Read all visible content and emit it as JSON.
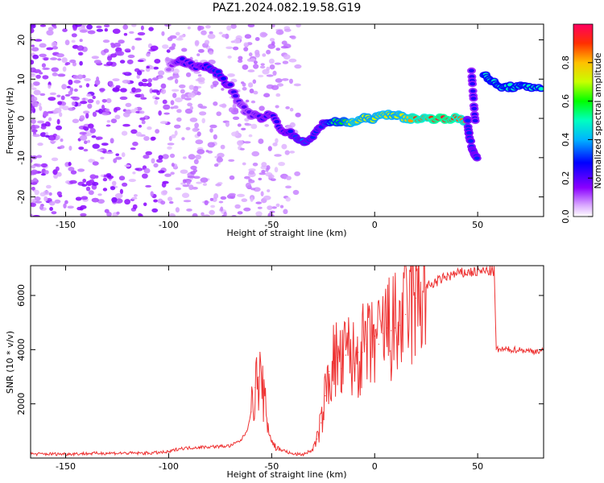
{
  "title": "PAZ1.2024.082.19.58.G19",
  "chart_data": [
    {
      "type": "heatmap",
      "xlabel": "Height of straight line (km)",
      "ylabel": "Frequency (Hz)",
      "xlim": [
        -167,
        82
      ],
      "ylim": [
        -25,
        24
      ],
      "xticks": [
        -150,
        -100,
        -50,
        0,
        50
      ],
      "yticks": [
        -20,
        -10,
        0,
        10,
        20
      ],
      "colorbar": {
        "label": "Normalized spectral amplitude",
        "range": [
          0,
          1
        ],
        "ticks": [
          0.0,
          0.2,
          0.4,
          0.6,
          0.8
        ],
        "colormap": "gist_rainbow_r"
      },
      "ridge": {
        "x": [
          -100,
          -95,
          -90,
          -85,
          -80,
          -75,
          -70,
          -65,
          -60,
          -55,
          -50,
          -45,
          -40,
          -35,
          -30,
          -25,
          -20,
          -15,
          -10,
          -5,
          0,
          5,
          10,
          15,
          20,
          25,
          30,
          35,
          40,
          45
        ],
        "y": [
          13,
          15,
          14,
          13,
          13,
          11,
          8,
          3,
          1,
          0,
          1,
          -3,
          -4,
          -6,
          -5,
          -1,
          -1,
          -1,
          -1,
          0,
          0,
          1,
          1,
          0,
          0,
          0,
          0,
          0,
          0,
          -1
        ]
      },
      "ridge_amplitude": [
        0.1,
        0.25,
        0.25,
        0.25,
        0.3,
        0.3,
        0.25,
        0.2,
        0.2,
        0.25,
        0.25,
        0.25,
        0.3,
        0.35,
        0.3,
        0.3,
        0.55,
        0.6,
        0.75,
        0.7,
        0.7,
        0.75,
        0.7,
        0.75,
        0.9,
        0.85,
        0.95,
        0.95,
        0.9,
        0.8
      ],
      "segments": [
        {
          "x": [
            45,
            46,
            48,
            50
          ],
          "y": [
            0,
            -5,
            -9,
            -10
          ]
        },
        {
          "x": [
            47,
            48,
            49
          ],
          "y": [
            12,
            5,
            -2
          ]
        },
        {
          "x": [
            53,
            56,
            60,
            65,
            70,
            75,
            82
          ],
          "y": [
            11,
            10,
            8,
            8,
            8,
            8,
            8
          ]
        }
      ],
      "segments_amplitude": [
        0.3,
        0.25,
        0.5
      ]
    },
    {
      "type": "line",
      "xlabel": "Height of straight line (km)",
      "ylabel": "SNR (10 * v/v)",
      "xlim": [
        -167,
        82
      ],
      "ylim": [
        0,
        7100
      ],
      "xticks": [
        -150,
        -100,
        -50,
        0,
        50
      ],
      "yticks": [
        2000,
        4000,
        6000
      ],
      "color": "#ee3333",
      "series": [
        {
          "x": [
            -167,
            -150,
            -130,
            -110,
            -100,
            -95,
            -85,
            -75,
            -70,
            -65,
            -62,
            -60,
            -58,
            -56,
            -54,
            -52,
            -50,
            -48,
            -45,
            -40,
            -35,
            -30,
            -28,
            -26,
            -24,
            -22,
            -20,
            -18,
            -16,
            -14,
            -12,
            -10,
            -8,
            -6,
            -4,
            -2,
            0,
            2,
            4,
            6,
            8,
            10,
            12,
            15,
            20,
            25,
            30,
            35,
            40,
            45,
            50,
            55,
            58,
            59,
            60,
            65,
            70,
            75,
            82
          ],
          "y": [
            150,
            150,
            180,
            180,
            220,
            350,
            400,
            430,
            450,
            650,
            1000,
            1700,
            2600,
            3000,
            2300,
            1300,
            650,
            380,
            300,
            150,
            130,
            300,
            700,
            1300,
            2300,
            3200,
            3500,
            3700,
            3300,
            3800,
            3900,
            3500,
            3900,
            3900,
            4200,
            3900,
            4500,
            4200,
            4600,
            4800,
            4700,
            4800,
            4900,
            5300,
            5900,
            6300,
            6500,
            6700,
            6800,
            6850,
            6880,
            6900,
            6900,
            4000,
            4000,
            4000,
            4000,
            3950,
            3950
          ]
        }
      ]
    }
  ]
}
